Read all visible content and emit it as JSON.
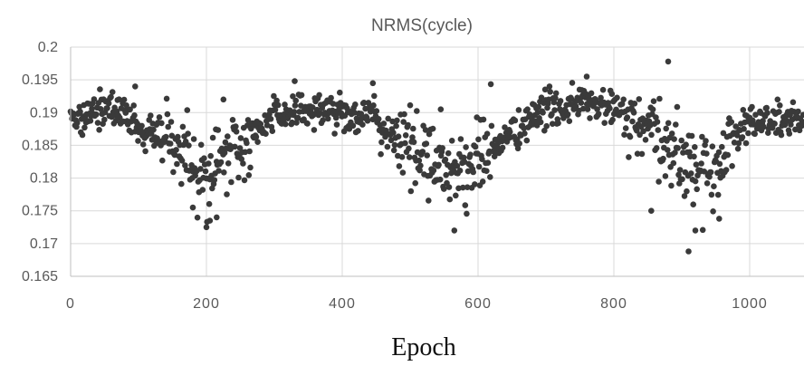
{
  "chart_data": {
    "type": "scatter",
    "title": "NRMS(cycle)",
    "xlabel": "Epoch",
    "ylabel": "",
    "xlim": [
      0,
      1080
    ],
    "ylim": [
      0.165,
      0.2
    ],
    "x_ticks": [
      "0",
      "200",
      "400",
      "600",
      "800",
      "1000"
    ],
    "x_tick_values": [
      0,
      200,
      400,
      600,
      800,
      1000
    ],
    "y_ticks": [
      "0.165",
      "0.17",
      "0.175",
      "0.18",
      "0.185",
      "0.19",
      "0.195",
      "0.2"
    ],
    "y_tick_values": [
      0.165,
      0.17,
      0.175,
      0.18,
      0.185,
      0.19,
      0.195,
      0.2
    ],
    "grid": true,
    "legend": "none",
    "marker_color": "#3a3a3a",
    "trend_anchors": {
      "x": [
        0,
        60,
        120,
        160,
        200,
        240,
        280,
        300,
        360,
        440,
        480,
        520,
        570,
        620,
        660,
        700,
        760,
        800,
        840,
        880,
        920,
        950,
        970,
        1000,
        1080
      ],
      "y": [
        0.1895,
        0.1905,
        0.187,
        0.1845,
        0.181,
        0.1835,
        0.187,
        0.19,
        0.1905,
        0.1895,
        0.186,
        0.1835,
        0.181,
        0.1845,
        0.1875,
        0.1905,
        0.1915,
        0.1905,
        0.1875,
        0.1845,
        0.182,
        0.18,
        0.1865,
        0.1885,
        0.189
      ]
    },
    "notable_points": [
      {
        "x": 95,
        "y": 0.194
      },
      {
        "x": 180,
        "y": 0.1755
      },
      {
        "x": 200,
        "y": 0.1725
      },
      {
        "x": 205,
        "y": 0.1735
      },
      {
        "x": 215,
        "y": 0.174
      },
      {
        "x": 225,
        "y": 0.192
      },
      {
        "x": 330,
        "y": 0.1948
      },
      {
        "x": 445,
        "y": 0.1945
      },
      {
        "x": 545,
        "y": 0.1905
      },
      {
        "x": 565,
        "y": 0.172
      },
      {
        "x": 760,
        "y": 0.1955
      },
      {
        "x": 855,
        "y": 0.175
      },
      {
        "x": 880,
        "y": 0.1978
      },
      {
        "x": 910,
        "y": 0.1688
      },
      {
        "x": 920,
        "y": 0.172
      },
      {
        "x": 955,
        "y": 0.1738
      }
    ],
    "point_count": 1000
  }
}
